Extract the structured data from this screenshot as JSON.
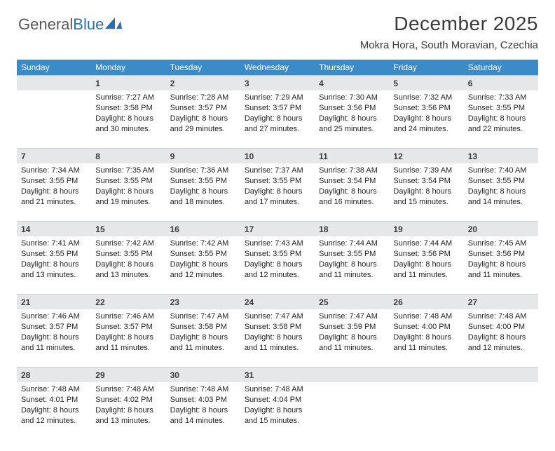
{
  "brand": {
    "name_part1": "General",
    "name_part2": "Blue"
  },
  "title": "December 2025",
  "location": "Mokra Hora, South Moravian, Czechia",
  "colors": {
    "header_bg": "#3b8bc7",
    "header_text": "#ffffff",
    "daynum_bg": "#e6e7e8",
    "daynum_border": "#c9cbcc",
    "text": "#3a3a3a",
    "logo_gray": "#595959",
    "logo_blue": "#2f6fa8",
    "page_bg": "#ffffff"
  },
  "day_names": [
    "Sunday",
    "Monday",
    "Tuesday",
    "Wednesday",
    "Thursday",
    "Friday",
    "Saturday"
  ],
  "weeks": [
    [
      {
        "n": "",
        "sr": "",
        "ss": "",
        "dl": ""
      },
      {
        "n": "1",
        "sr": "Sunrise: 7:27 AM",
        "ss": "Sunset: 3:58 PM",
        "dl": "Daylight: 8 hours and 30 minutes."
      },
      {
        "n": "2",
        "sr": "Sunrise: 7:28 AM",
        "ss": "Sunset: 3:57 PM",
        "dl": "Daylight: 8 hours and 29 minutes."
      },
      {
        "n": "3",
        "sr": "Sunrise: 7:29 AM",
        "ss": "Sunset: 3:57 PM",
        "dl": "Daylight: 8 hours and 27 minutes."
      },
      {
        "n": "4",
        "sr": "Sunrise: 7:30 AM",
        "ss": "Sunset: 3:56 PM",
        "dl": "Daylight: 8 hours and 25 minutes."
      },
      {
        "n": "5",
        "sr": "Sunrise: 7:32 AM",
        "ss": "Sunset: 3:56 PM",
        "dl": "Daylight: 8 hours and 24 minutes."
      },
      {
        "n": "6",
        "sr": "Sunrise: 7:33 AM",
        "ss": "Sunset: 3:55 PM",
        "dl": "Daylight: 8 hours and 22 minutes."
      }
    ],
    [
      {
        "n": "7",
        "sr": "Sunrise: 7:34 AM",
        "ss": "Sunset: 3:55 PM",
        "dl": "Daylight: 8 hours and 21 minutes."
      },
      {
        "n": "8",
        "sr": "Sunrise: 7:35 AM",
        "ss": "Sunset: 3:55 PM",
        "dl": "Daylight: 8 hours and 19 minutes."
      },
      {
        "n": "9",
        "sr": "Sunrise: 7:36 AM",
        "ss": "Sunset: 3:55 PM",
        "dl": "Daylight: 8 hours and 18 minutes."
      },
      {
        "n": "10",
        "sr": "Sunrise: 7:37 AM",
        "ss": "Sunset: 3:55 PM",
        "dl": "Daylight: 8 hours and 17 minutes."
      },
      {
        "n": "11",
        "sr": "Sunrise: 7:38 AM",
        "ss": "Sunset: 3:54 PM",
        "dl": "Daylight: 8 hours and 16 minutes."
      },
      {
        "n": "12",
        "sr": "Sunrise: 7:39 AM",
        "ss": "Sunset: 3:54 PM",
        "dl": "Daylight: 8 hours and 15 minutes."
      },
      {
        "n": "13",
        "sr": "Sunrise: 7:40 AM",
        "ss": "Sunset: 3:55 PM",
        "dl": "Daylight: 8 hours and 14 minutes."
      }
    ],
    [
      {
        "n": "14",
        "sr": "Sunrise: 7:41 AM",
        "ss": "Sunset: 3:55 PM",
        "dl": "Daylight: 8 hours and 13 minutes."
      },
      {
        "n": "15",
        "sr": "Sunrise: 7:42 AM",
        "ss": "Sunset: 3:55 PM",
        "dl": "Daylight: 8 hours and 13 minutes."
      },
      {
        "n": "16",
        "sr": "Sunrise: 7:42 AM",
        "ss": "Sunset: 3:55 PM",
        "dl": "Daylight: 8 hours and 12 minutes."
      },
      {
        "n": "17",
        "sr": "Sunrise: 7:43 AM",
        "ss": "Sunset: 3:55 PM",
        "dl": "Daylight: 8 hours and 12 minutes."
      },
      {
        "n": "18",
        "sr": "Sunrise: 7:44 AM",
        "ss": "Sunset: 3:55 PM",
        "dl": "Daylight: 8 hours and 11 minutes."
      },
      {
        "n": "19",
        "sr": "Sunrise: 7:44 AM",
        "ss": "Sunset: 3:56 PM",
        "dl": "Daylight: 8 hours and 11 minutes."
      },
      {
        "n": "20",
        "sr": "Sunrise: 7:45 AM",
        "ss": "Sunset: 3:56 PM",
        "dl": "Daylight: 8 hours and 11 minutes."
      }
    ],
    [
      {
        "n": "21",
        "sr": "Sunrise: 7:46 AM",
        "ss": "Sunset: 3:57 PM",
        "dl": "Daylight: 8 hours and 11 minutes."
      },
      {
        "n": "22",
        "sr": "Sunrise: 7:46 AM",
        "ss": "Sunset: 3:57 PM",
        "dl": "Daylight: 8 hours and 11 minutes."
      },
      {
        "n": "23",
        "sr": "Sunrise: 7:47 AM",
        "ss": "Sunset: 3:58 PM",
        "dl": "Daylight: 8 hours and 11 minutes."
      },
      {
        "n": "24",
        "sr": "Sunrise: 7:47 AM",
        "ss": "Sunset: 3:58 PM",
        "dl": "Daylight: 8 hours and 11 minutes."
      },
      {
        "n": "25",
        "sr": "Sunrise: 7:47 AM",
        "ss": "Sunset: 3:59 PM",
        "dl": "Daylight: 8 hours and 11 minutes."
      },
      {
        "n": "26",
        "sr": "Sunrise: 7:48 AM",
        "ss": "Sunset: 4:00 PM",
        "dl": "Daylight: 8 hours and 11 minutes."
      },
      {
        "n": "27",
        "sr": "Sunrise: 7:48 AM",
        "ss": "Sunset: 4:00 PM",
        "dl": "Daylight: 8 hours and 12 minutes."
      }
    ],
    [
      {
        "n": "28",
        "sr": "Sunrise: 7:48 AM",
        "ss": "Sunset: 4:01 PM",
        "dl": "Daylight: 8 hours and 12 minutes."
      },
      {
        "n": "29",
        "sr": "Sunrise: 7:48 AM",
        "ss": "Sunset: 4:02 PM",
        "dl": "Daylight: 8 hours and 13 minutes."
      },
      {
        "n": "30",
        "sr": "Sunrise: 7:48 AM",
        "ss": "Sunset: 4:03 PM",
        "dl": "Daylight: 8 hours and 14 minutes."
      },
      {
        "n": "31",
        "sr": "Sunrise: 7:48 AM",
        "ss": "Sunset: 4:04 PM",
        "dl": "Daylight: 8 hours and 15 minutes."
      },
      {
        "n": "",
        "sr": "",
        "ss": "",
        "dl": ""
      },
      {
        "n": "",
        "sr": "",
        "ss": "",
        "dl": ""
      },
      {
        "n": "",
        "sr": "",
        "ss": "",
        "dl": ""
      }
    ]
  ]
}
